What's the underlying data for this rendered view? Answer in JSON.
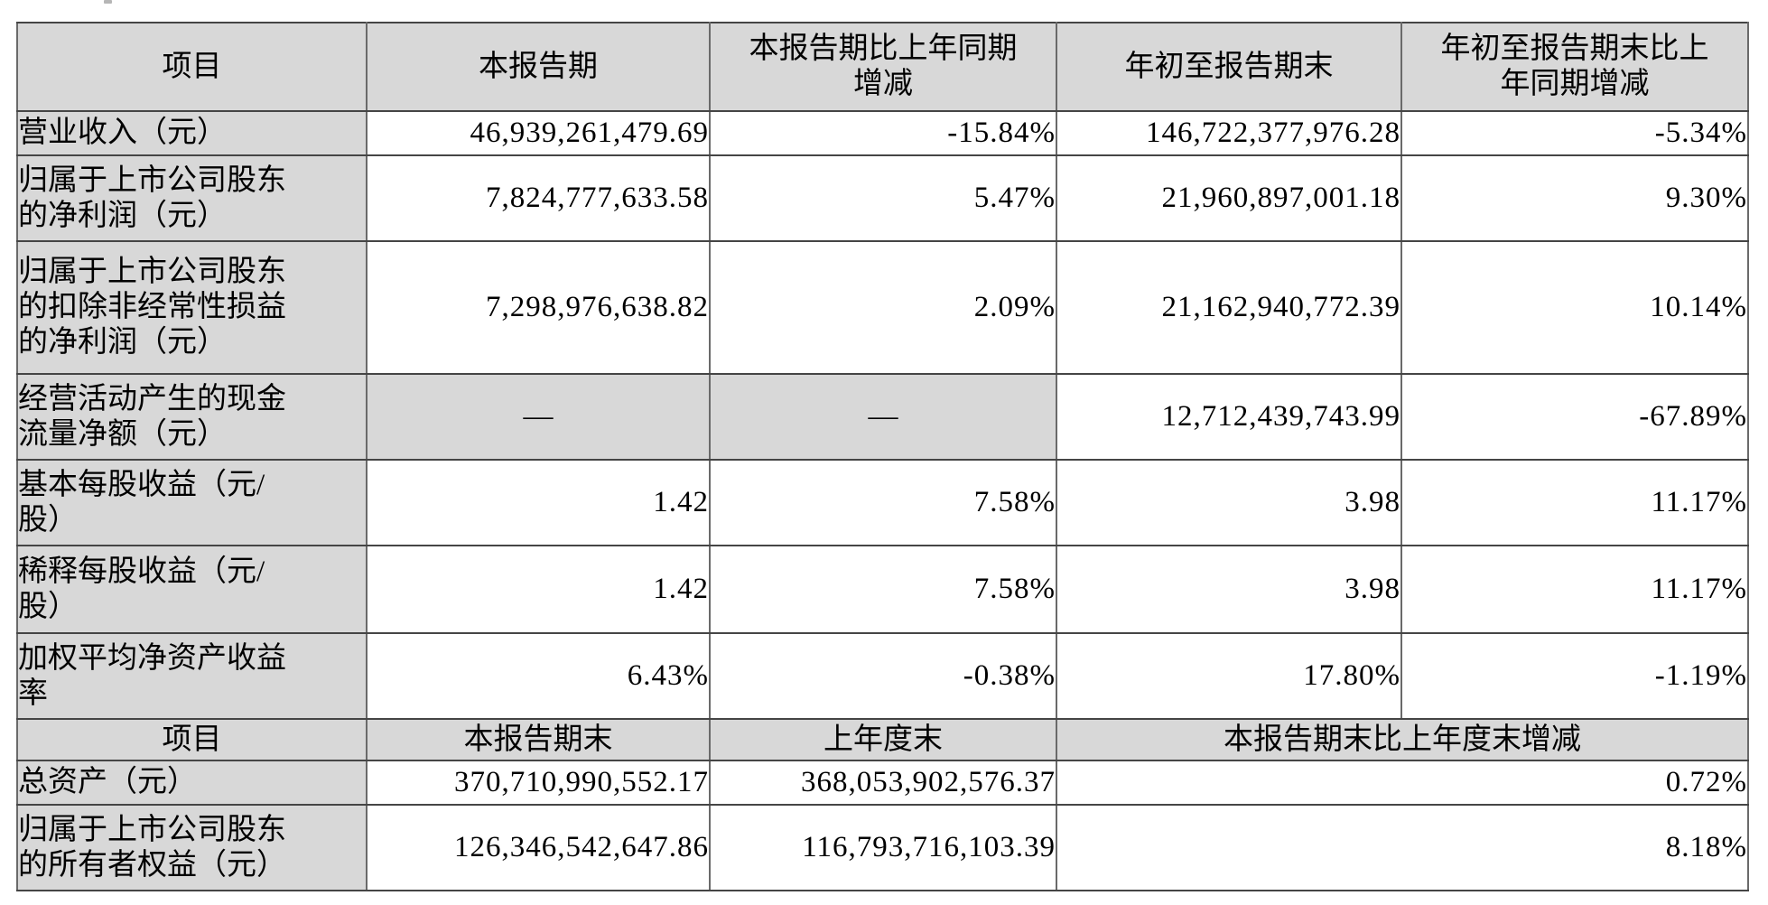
{
  "colors": {
    "header_and_label_bg": "#d8d8d8",
    "grid_line_horizontal": "#454545",
    "grid_line_vertical": "#6a6a6a",
    "text": "#000000",
    "page_bg": "#ffffff"
  },
  "table": {
    "rows": [
      {
        "id": "header-top",
        "type": "header",
        "cells": [
          {
            "lines": [
              "项目"
            ]
          },
          {
            "lines": [
              "本报告期"
            ]
          },
          {
            "lines": [
              "本报告期比上年同期",
              "增减"
            ]
          },
          {
            "lines": [
              "年初至报告期末"
            ]
          },
          {
            "lines": [
              "年初至报告期末比上",
              "年同期增减"
            ]
          }
        ]
      },
      {
        "id": "revenue",
        "type": "data",
        "cells": [
          {
            "lines": [
              "营业收入（元）"
            ]
          },
          {
            "lines": [
              "46,939,261,479.69"
            ]
          },
          {
            "lines": [
              "-15.84%"
            ]
          },
          {
            "lines": [
              "146,722,377,976.28"
            ]
          },
          {
            "lines": [
              "-5.34%"
            ]
          }
        ]
      },
      {
        "id": "net-profit",
        "type": "data",
        "cells": [
          {
            "lines": [
              "归属于上市公司股东",
              "的净利润（元）"
            ]
          },
          {
            "lines": [
              "7,824,777,633.58"
            ]
          },
          {
            "lines": [
              "5.47%"
            ]
          },
          {
            "lines": [
              "21,960,897,001.18"
            ]
          },
          {
            "lines": [
              "9.30%"
            ]
          }
        ]
      },
      {
        "id": "deducted-net-profit",
        "type": "data",
        "cells": [
          {
            "lines": [
              "归属于上市公司股东",
              "的扣除非经常性损益",
              "的净利润（元）"
            ]
          },
          {
            "lines": [
              "7,298,976,638.82"
            ]
          },
          {
            "lines": [
              "2.09%"
            ]
          },
          {
            "lines": [
              "21,162,940,772.39"
            ]
          },
          {
            "lines": [
              "10.14%"
            ]
          }
        ]
      },
      {
        "id": "operating-cash-flow",
        "type": "data",
        "cells": [
          {
            "lines": [
              "经营活动产生的现金",
              "流量净额（元）"
            ]
          },
          {
            "lines": [
              "—"
            ],
            "shaded": true
          },
          {
            "lines": [
              "—"
            ],
            "shaded": true
          },
          {
            "lines": [
              "12,712,439,743.99"
            ]
          },
          {
            "lines": [
              "-67.89%"
            ]
          }
        ]
      },
      {
        "id": "basic-eps",
        "type": "data",
        "cells": [
          {
            "lines": [
              "基本每股收益（元/",
              "股）"
            ]
          },
          {
            "lines": [
              "1.42"
            ]
          },
          {
            "lines": [
              "7.58%"
            ]
          },
          {
            "lines": [
              "3.98"
            ]
          },
          {
            "lines": [
              "11.17%"
            ]
          }
        ]
      },
      {
        "id": "diluted-eps",
        "type": "data",
        "cells": [
          {
            "lines": [
              "稀释每股收益（元/",
              "股）"
            ]
          },
          {
            "lines": [
              "1.42"
            ]
          },
          {
            "lines": [
              "7.58%"
            ]
          },
          {
            "lines": [
              "3.98"
            ]
          },
          {
            "lines": [
              "11.17%"
            ]
          }
        ]
      },
      {
        "id": "weighted-roe",
        "type": "data",
        "cells": [
          {
            "lines": [
              "加权平均净资产收益",
              "率"
            ]
          },
          {
            "lines": [
              "6.43%"
            ]
          },
          {
            "lines": [
              "-0.38%"
            ]
          },
          {
            "lines": [
              "17.80%"
            ]
          },
          {
            "lines": [
              "-1.19%"
            ]
          }
        ]
      },
      {
        "id": "header-bottom",
        "type": "header",
        "cells": [
          {
            "lines": [
              "项目"
            ]
          },
          {
            "lines": [
              "本报告期末"
            ]
          },
          {
            "lines": [
              "上年度末"
            ]
          },
          {
            "lines": [
              "本报告期末比上年度末增减"
            ],
            "colspan": 2
          }
        ]
      },
      {
        "id": "total-assets",
        "type": "data",
        "cells": [
          {
            "lines": [
              "总资产（元）"
            ]
          },
          {
            "lines": [
              "370,710,990,552.17"
            ]
          },
          {
            "lines": [
              "368,053,902,576.37"
            ]
          },
          {
            "lines": [
              "0.72%"
            ],
            "colspan": 2
          }
        ]
      },
      {
        "id": "equity",
        "type": "data",
        "cells": [
          {
            "lines": [
              "归属于上市公司股东",
              "的所有者权益（元）"
            ]
          },
          {
            "lines": [
              "126,346,542,647.86"
            ]
          },
          {
            "lines": [
              "116,793,716,103.39"
            ]
          },
          {
            "lines": [
              "8.18%"
            ],
            "colspan": 2
          }
        ]
      }
    ]
  }
}
